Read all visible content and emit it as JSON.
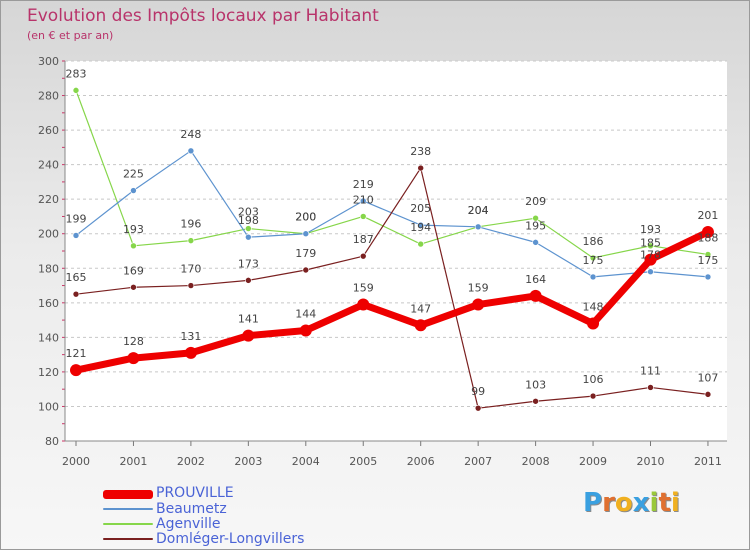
{
  "chart_data": {
    "type": "line",
    "title": "Evolution des Impôts locaux par Habitant",
    "subtitle": "(en € et par an)",
    "xlabel": "",
    "ylabel": "",
    "x": [
      "2000",
      "2001",
      "2002",
      "2003",
      "2004",
      "2005",
      "2006",
      "2007",
      "2008",
      "2009",
      "2010",
      "2011"
    ],
    "ylim": [
      80,
      300
    ],
    "yticks": [
      80,
      100,
      120,
      140,
      160,
      180,
      200,
      220,
      240,
      260,
      280,
      300
    ],
    "grid": "horizontal dashed",
    "legend_position": "bottom-left",
    "series": [
      {
        "name": "PROUVILLE",
        "color": "#ee0000",
        "values": [
          121,
          128,
          131,
          141,
          144,
          159,
          147,
          159,
          164,
          148,
          185,
          201
        ]
      },
      {
        "name": "Beaumetz",
        "color": "#5d93cf",
        "values": [
          199,
          225,
          248,
          198,
          200,
          219,
          205,
          204,
          195,
          175,
          178,
          175
        ]
      },
      {
        "name": "Agenville",
        "color": "#86d64a",
        "values": [
          283,
          193,
          196,
          203,
          200,
          210,
          194,
          204,
          209,
          186,
          193,
          188
        ]
      },
      {
        "name": "Domléger-Longvillers",
        "color": "#7a2020",
        "values": [
          165,
          169,
          170,
          173,
          179,
          187,
          238,
          99,
          103,
          106,
          111,
          107
        ]
      }
    ]
  },
  "logo": {
    "text": "Proxiti",
    "letters": [
      "P",
      "r",
      "o",
      "x",
      "i",
      "t",
      "i"
    ],
    "colors": [
      "#3aa0e0",
      "#e07030",
      "#f0b020",
      "#3aa0e0",
      "#9ac83a",
      "#e07030",
      "#f0b020"
    ]
  }
}
